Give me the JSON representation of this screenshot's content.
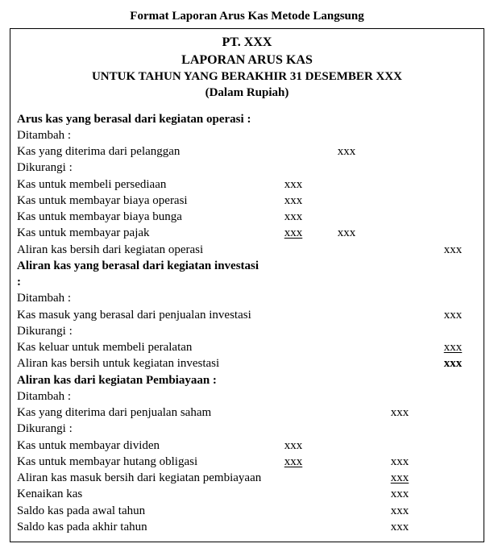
{
  "outerTitle": "Format Laporan Arus Kas Metode Langsung",
  "header": {
    "company": "PT. XXX",
    "title": "LAPORAN ARUS KAS",
    "period": "UNTUK TAHUN YANG BERAKHIR 31 DESEMBER XXX",
    "currency": "(Dalam Rupiah)"
  },
  "placeholder": "xxx",
  "columnCount": 4,
  "sections": {
    "operating": {
      "heading": "Arus kas yang berasal dari kegiatan operasi :",
      "addLabel": "Ditambah :",
      "lessLabel": "Dikurangi :",
      "line_cashFromCustomers": "Kas yang diterima dari pelanggan",
      "line_buyInventory": "Kas untuk membeli persediaan",
      "line_opExpense": "Kas untuk membayar biaya operasi",
      "line_interest": "Kas untuk membayar biaya bunga",
      "line_tax": "Kas untuk membayar pajak",
      "netLabel": "Aliran kas bersih dari kegiatan operasi"
    },
    "investing": {
      "heading": "Aliran kas yang berasal dari kegiatan investasi :",
      "addLabel": "Ditambah :",
      "lessLabel": "Dikurangi :",
      "line_saleInvestments": "Kas masuk yang berasal dari penjualan investasi",
      "line_buyEquipment": "Kas keluar untuk membeli peralatan",
      "netLabel": "Aliran kas bersih untuk kegiatan investasi"
    },
    "financing": {
      "heading": "Aliran kas dari kegiatan Pembiayaan :",
      "addLabel": "Ditambah :",
      "lessLabel": "Dikurangi :",
      "line_stockSale": "Kas yang diterima dari penjualan saham",
      "line_dividends": "Kas untuk membayar dividen",
      "line_bonds": "Kas untuk membayar hutang obligasi",
      "netLabel": "Aliran kas masuk bersih dari kegiatan pembiayaan"
    },
    "footer": {
      "increase": "Kenaikan kas",
      "beginning": "Saldo kas pada awal tahun",
      "ending": "Saldo kas pada akhir tahun"
    }
  }
}
